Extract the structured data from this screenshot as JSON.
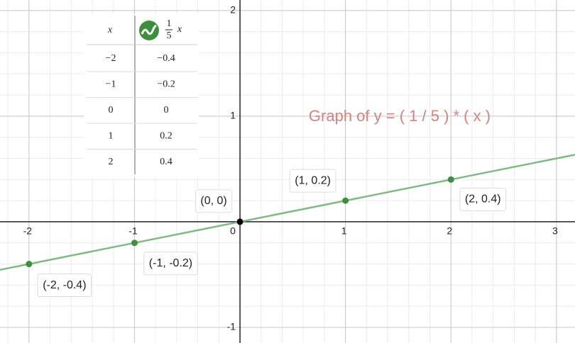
{
  "chart_data": {
    "type": "line",
    "annotation": "Graph of y = ( 1 / 5 ) * ( x )",
    "annotation_color": "#d98080",
    "xlim": [
      -2.275,
      3.176
    ],
    "ylim": [
      -1.148,
      2.1
    ],
    "xticks": [
      -2,
      -1,
      0,
      1,
      2,
      3
    ],
    "yticks": [
      -1,
      1,
      2
    ],
    "minor_grid_step": 0.2,
    "grid": true,
    "line": {
      "color": "#82b882",
      "x": [
        -2.275,
        3.176
      ],
      "y": [
        -0.455,
        0.635
      ]
    },
    "points": {
      "color": "#3d8f3d",
      "origin_color": "#000000",
      "x": [
        -2,
        -1,
        0,
        1,
        2
      ],
      "y": [
        -0.4,
        -0.2,
        0,
        0.2,
        0.4
      ],
      "labels": [
        "(-2, -0.4)",
        "(-1, -0.2)",
        "(0, 0)",
        "(1, 0.2)",
        "(2, 0.4)"
      ]
    },
    "table": {
      "header_x": "x",
      "header_numerator": "1",
      "header_denominator": "5",
      "header_var": "x",
      "rows": [
        [
          "−2",
          "−0.4"
        ],
        [
          "−1",
          "−0.2"
        ],
        [
          "0",
          "0"
        ],
        [
          "1",
          "0.2"
        ],
        [
          "2",
          "0.4"
        ]
      ]
    }
  }
}
